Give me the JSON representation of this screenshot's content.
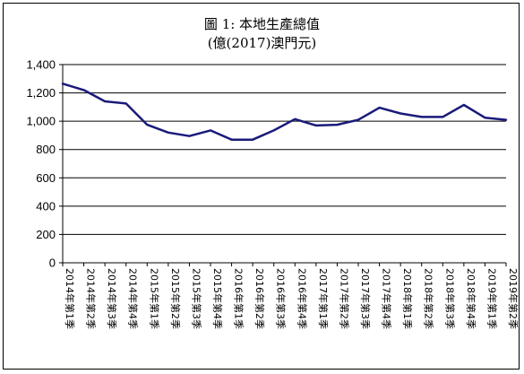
{
  "chart_data": {
    "type": "line",
    "title": "圖 1: 本地生產總值",
    "subtitle": "(億(2017)澳門元)",
    "xlabel": "",
    "ylabel": "",
    "ylim": [
      0,
      1400
    ],
    "yticks": [
      0,
      200,
      400,
      600,
      800,
      1000,
      1200,
      1400
    ],
    "ytick_labels": [
      "0",
      "200",
      "400",
      "600",
      "800",
      "1,000",
      "1,200",
      "1,400"
    ],
    "grid": true,
    "line_color": "#1a1a7a",
    "categories": [
      "2014年第1季",
      "2014年第2季",
      "2014年第3季",
      "2014年第4季",
      "2015年第1季",
      "2015年第2季",
      "2015年第3季",
      "2015年第4季",
      "2016年第1季",
      "2016年第2季",
      "2016年第3季",
      "2016年第4季",
      "2017年第1季",
      "2017年第2季",
      "2017年第3季",
      "2017年第4季",
      "2018年第1季",
      "2018年第2季",
      "2018年第3季",
      "2018年第4季",
      "2019年第1季",
      "2019年第2季"
    ],
    "series": [
      {
        "values": [
          1265,
          1220,
          1140,
          1125,
          975,
          920,
          895,
          935,
          870,
          870,
          935,
          1015,
          970,
          975,
          1010,
          1095,
          1055,
          1030,
          1030,
          1115,
          1025,
          1010
        ]
      }
    ]
  }
}
